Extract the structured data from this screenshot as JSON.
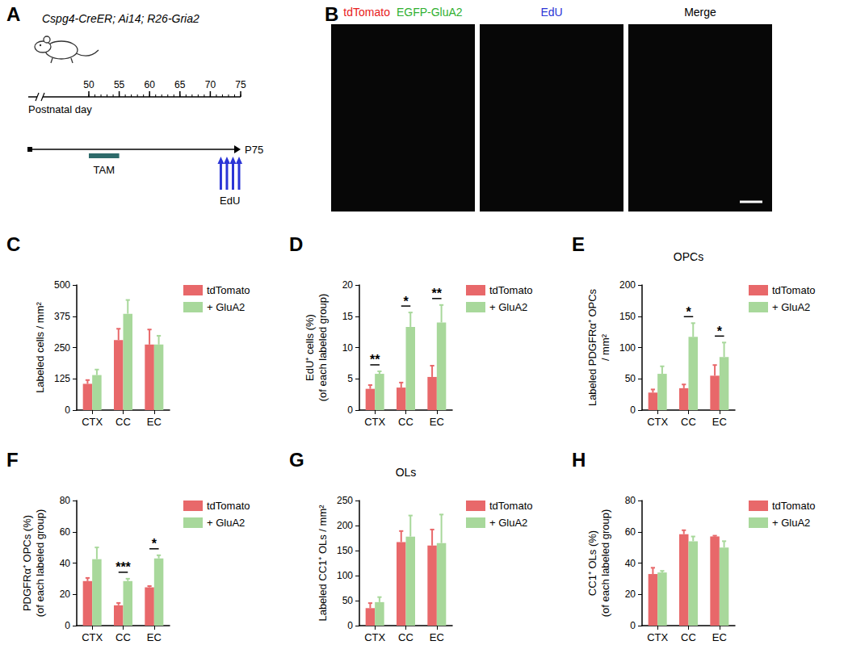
{
  "schematic": {
    "panel": "A",
    "genotype": "Cspg4-CreER; Ai14; R26-Gria2",
    "axis_label": "Postnatal day",
    "ticks": [
      50,
      55,
      60,
      65,
      70,
      75
    ],
    "tam": {
      "label": "TAM",
      "days": [
        50,
        55
      ]
    },
    "edu": {
      "label": "EdU",
      "days": [
        72,
        73,
        74,
        75
      ]
    },
    "end": {
      "label": "P75",
      "day": 75
    }
  },
  "images": {
    "panel": "B",
    "frames": [
      {
        "labels": [
          {
            "text": "tdTomato",
            "color": "#e82020"
          },
          {
            "text": "EGFP-GluA2",
            "color": "#2fb02f"
          }
        ]
      },
      {
        "labels": [
          {
            "text": "EdU",
            "color": "#2b35d6"
          }
        ]
      },
      {
        "labels": [
          {
            "text": "Merge",
            "color": "#000000"
          }
        ]
      }
    ]
  },
  "chart_data": [
    {
      "type": "bar",
      "panel": "C",
      "ylabel": "Labeled cells / mm²",
      "categories": [
        "CTX",
        "CC",
        "EC"
      ],
      "series": [
        {
          "name": "tdTomato",
          "color": "#e8686a",
          "values": [
            105,
            280,
            262
          ],
          "errors": [
            15,
            45,
            60
          ]
        },
        {
          "name": "+ GluA2",
          "color": "#a8d89b",
          "values": [
            140,
            385,
            262
          ],
          "errors": [
            22,
            55,
            35
          ]
        }
      ],
      "ylim": [
        0,
        500
      ],
      "yticks": [
        0,
        125,
        250,
        375,
        500
      ],
      "grid": false,
      "legend": "right"
    },
    {
      "type": "bar",
      "panel": "D",
      "ylabel": "EdU⁺ cells (%)\n(of each labeled group)",
      "categories": [
        "CTX",
        "CC",
        "EC"
      ],
      "series": [
        {
          "name": "tdTomato",
          "color": "#e8686a",
          "values": [
            3.4,
            3.6,
            5.3
          ],
          "errors": [
            0.6,
            0.8,
            1.8
          ]
        },
        {
          "name": "+ GluA2",
          "color": "#a8d89b",
          "values": [
            5.8,
            13.3,
            14
          ],
          "errors": [
            0.4,
            2.3,
            2.8
          ]
        }
      ],
      "significance": [
        "**",
        "*",
        "**"
      ],
      "ylim": [
        0,
        20
      ],
      "yticks": [
        0,
        5,
        10,
        15,
        20
      ],
      "grid": false,
      "legend": "right"
    },
    {
      "type": "bar",
      "panel": "E",
      "title": "OPCs",
      "ylabel": "Labeled PDGFRα⁺ OPCs\n/ mm²",
      "categories": [
        "CTX",
        "CC",
        "EC"
      ],
      "series": [
        {
          "name": "tdTomato",
          "color": "#e8686a",
          "values": [
            28,
            35,
            55
          ],
          "errors": [
            5,
            6,
            17
          ]
        },
        {
          "name": "+ GluA2",
          "color": "#a8d89b",
          "values": [
            58,
            117,
            85
          ],
          "errors": [
            12,
            22,
            23
          ]
        }
      ],
      "significance": [
        null,
        "*",
        "*"
      ],
      "ylim": [
        0,
        200
      ],
      "yticks": [
        0,
        50,
        100,
        150,
        200
      ],
      "grid": false,
      "legend": "right"
    },
    {
      "type": "bar",
      "panel": "F",
      "ylabel": "PDGFRα⁺ OPCs (%)\n(of each labeled group)",
      "categories": [
        "CTX",
        "CC",
        "EC"
      ],
      "series": [
        {
          "name": "tdTomato",
          "color": "#e8686a",
          "values": [
            28.5,
            13,
            24.5
          ],
          "errors": [
            2,
            1.5,
            0.8
          ]
        },
        {
          "name": "+ GluA2",
          "color": "#a8d89b",
          "values": [
            42.5,
            28.5,
            43
          ],
          "errors": [
            7.5,
            1.5,
            2
          ]
        }
      ],
      "significance": [
        null,
        "***",
        "*"
      ],
      "ylim": [
        0,
        80
      ],
      "yticks": [
        0,
        20,
        40,
        60,
        80
      ],
      "grid": false,
      "legend": "right"
    },
    {
      "type": "bar",
      "panel": "G",
      "title": "OLs",
      "ylabel": "Labeled CC1⁺ OLs / mm²",
      "categories": [
        "CTX",
        "CC",
        "EC"
      ],
      "series": [
        {
          "name": "tdTomato",
          "color": "#e8686a",
          "values": [
            35,
            167,
            160
          ],
          "errors": [
            10,
            22,
            32
          ]
        },
        {
          "name": "+ GluA2",
          "color": "#a8d89b",
          "values": [
            47,
            178,
            165
          ],
          "errors": [
            10,
            42,
            57
          ]
        }
      ],
      "ylim": [
        0,
        250
      ],
      "yticks": [
        0,
        50,
        100,
        150,
        200,
        250
      ],
      "grid": false,
      "legend": "right"
    },
    {
      "type": "bar",
      "panel": "H",
      "ylabel": "CC1⁺ OLs (%)\n(of each labeled group)",
      "categories": [
        "CTX",
        "CC",
        "EC"
      ],
      "series": [
        {
          "name": "tdTomato",
          "color": "#e8686a",
          "values": [
            33,
            58.5,
            57
          ],
          "errors": [
            4,
            2.5,
            0.5
          ]
        },
        {
          "name": "+ GluA2",
          "color": "#a8d89b",
          "values": [
            34,
            54,
            50
          ],
          "errors": [
            1,
            3,
            4
          ]
        }
      ],
      "ylim": [
        0,
        80
      ],
      "yticks": [
        0,
        20,
        40,
        60,
        80
      ],
      "grid": false,
      "legend": "right"
    }
  ]
}
